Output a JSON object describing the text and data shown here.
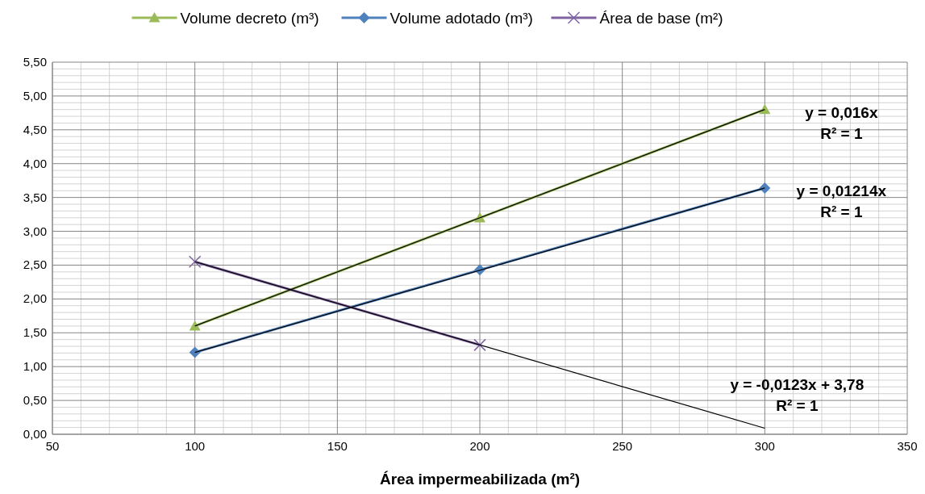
{
  "chart_data": {
    "type": "line",
    "xlabel": "Área impermeabilizada (m²)",
    "xlim": [
      50,
      350
    ],
    "xticks": [
      50,
      100,
      150,
      200,
      250,
      300,
      350
    ],
    "ylim": [
      0,
      5.5
    ],
    "yticks": [
      {
        "value": 0,
        "label": "0,00"
      },
      {
        "value": 0.5,
        "label": "0,50"
      },
      {
        "value": 1,
        "label": "1,00"
      },
      {
        "value": 1.5,
        "label": "1,50"
      },
      {
        "value": 2,
        "label": "2,00"
      },
      {
        "value": 2.5,
        "label": "2,50"
      },
      {
        "value": 3,
        "label": "3,00"
      },
      {
        "value": 3.5,
        "label": "3,50"
      },
      {
        "value": 4,
        "label": "4,00"
      },
      {
        "value": 4.5,
        "label": "4,50"
      },
      {
        "value": 5,
        "label": "5,00"
      },
      {
        "value": 5.5,
        "label": "5,50"
      }
    ],
    "grid": true,
    "legend": "top",
    "series": [
      {
        "name": "Volume decreto (m³)",
        "color": "#9bbb59",
        "marker": "triangle",
        "x": [
          100,
          200,
          300
        ],
        "values": [
          1.6,
          3.2,
          4.8
        ]
      },
      {
        "name": "Volume adotado (m³)",
        "color": "#4f81bd",
        "marker": "diamond",
        "x": [
          100,
          200,
          300
        ],
        "values": [
          1.21,
          2.43,
          3.64
        ]
      },
      {
        "name": "Área de base (m²)",
        "color": "#8064a2",
        "marker": "cross",
        "x": [
          100,
          200
        ],
        "values": [
          2.55,
          1.32
        ]
      },
      {
        "color": "#000000",
        "marker": "none",
        "x": [
          100,
          300
        ],
        "values": [
          1.6,
          4.8
        ]
      },
      {
        "color": "#000000",
        "marker": "none",
        "x": [
          100,
          300
        ],
        "values": [
          1.21,
          3.64
        ]
      },
      {
        "color": "#000000",
        "marker": "none",
        "x": [
          100,
          300
        ],
        "values": [
          2.55,
          0.09
        ]
      }
    ],
    "annotations": [
      "y = 0,016x\nR² = 1",
      "y = 0,01214x\nR² = 1",
      "y = -0,0123x + 3,78\nR² = 1"
    ]
  }
}
